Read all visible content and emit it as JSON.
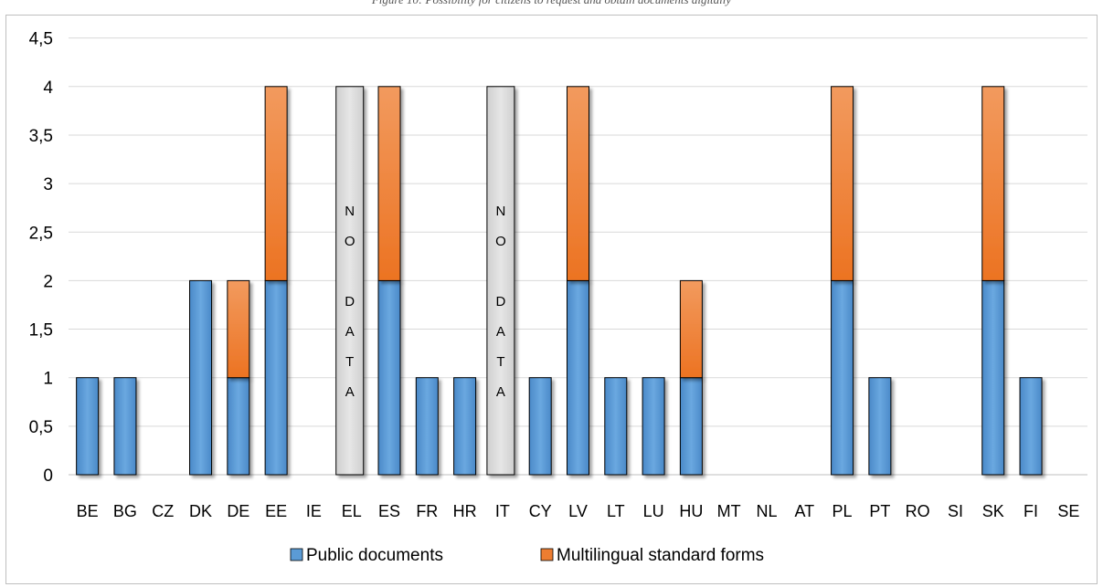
{
  "caption": "Figure 10: Possibility for citizens to request and obtain documents digitally",
  "chart_data": {
    "type": "bar",
    "stacked": true,
    "categories": [
      "BE",
      "BG",
      "CZ",
      "DK",
      "DE",
      "EE",
      "IE",
      "EL",
      "ES",
      "FR",
      "HR",
      "IT",
      "CY",
      "LV",
      "LT",
      "LU",
      "HU",
      "MT",
      "NL",
      "AT",
      "PL",
      "PT",
      "RO",
      "SI",
      "SK",
      "FI",
      "SE"
    ],
    "series": [
      {
        "name": "Public documents",
        "color": "#5B9BD5",
        "values": [
          1,
          1,
          0,
          2,
          1,
          2,
          0,
          0,
          2,
          1,
          1,
          0,
          1,
          2,
          1,
          1,
          1,
          0,
          0,
          0,
          2,
          1,
          0,
          0,
          2,
          1,
          0
        ]
      },
      {
        "name": "Multilingual standard forms",
        "color": "#ED7D31",
        "values": [
          0,
          0,
          0,
          0,
          1,
          2,
          0,
          0,
          2,
          0,
          0,
          0,
          0,
          2,
          0,
          0,
          1,
          0,
          0,
          0,
          2,
          0,
          0,
          0,
          2,
          0,
          0
        ]
      }
    ],
    "no_data": {
      "categories": [
        "EL",
        "IT"
      ],
      "value": 4,
      "label_lines": [
        "N",
        "O",
        "",
        "D",
        "A",
        "T",
        "A"
      ],
      "color": "#D9D9D9"
    },
    "y_ticks": [
      "0",
      "0,5",
      "1",
      "1,5",
      "2",
      "2,5",
      "3",
      "3,5",
      "4",
      "4,5"
    ],
    "ylim": [
      0,
      4.5
    ],
    "grid": true,
    "legend_position": "bottom"
  }
}
